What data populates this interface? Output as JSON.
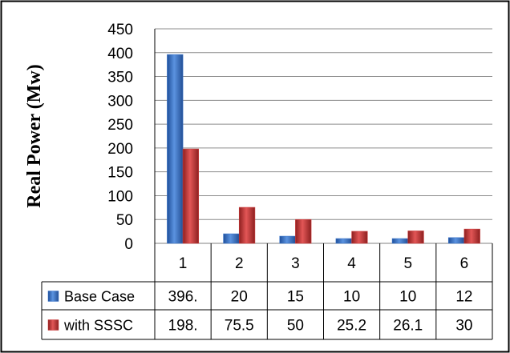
{
  "chart_data": {
    "type": "bar",
    "title": "",
    "xlabel": "",
    "ylabel": "Real Power (Mw)",
    "ylim": [
      0,
      450
    ],
    "yticks": [
      0,
      50,
      100,
      150,
      200,
      250,
      300,
      350,
      400,
      450
    ],
    "categories": [
      "1",
      "2",
      "3",
      "4",
      "5",
      "6"
    ],
    "grid": true,
    "legend_placement": "data-table",
    "series": [
      {
        "name": "Base Case",
        "color": "#3a74c9",
        "values": [
          396,
          20,
          15,
          10,
          10,
          12
        ],
        "labels": [
          "396.",
          "20",
          "15",
          "10",
          "10",
          "12"
        ]
      },
      {
        "name": "with SSSC",
        "color": "#cc3b3b",
        "values": [
          198,
          75.5,
          50,
          25.2,
          26.1,
          30
        ],
        "labels": [
          "198.",
          "75.5",
          "50",
          "25.2",
          "26.1",
          "30"
        ]
      }
    ]
  }
}
